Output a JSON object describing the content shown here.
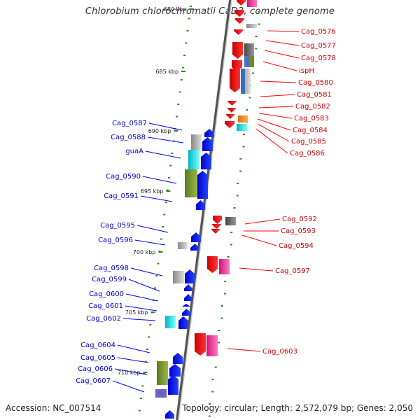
{
  "title": "Chlorobium chlorochromatii CaD3, complete genome",
  "footer": {
    "accession": "Accession: NC_007514",
    "summary": "Topology: circular; Length: 2,572,079 bp; Genes: 2,050"
  },
  "colors": {
    "reverse_strand": "#ff0000",
    "forward_strand": "#0000ff",
    "backbone": "#999999",
    "tick": "#2e8b22"
  },
  "kbp_ticks": [
    {
      "label": "680 kbp",
      "pos": 0
    },
    {
      "label": "685 kbp",
      "pos": 1
    },
    {
      "label": "690 kbp",
      "pos": 2
    },
    {
      "label": "695 kbp",
      "pos": 3
    },
    {
      "label": "700 kbp",
      "pos": 4
    },
    {
      "label": "705 kbp",
      "pos": 5
    },
    {
      "label": "710 kbp",
      "pos": 6
    }
  ],
  "right_labels": [
    "Cag_0576",
    "Cag_0577",
    "Cag_0578",
    "ispH",
    "Cag_0580",
    "Cag_0581",
    "Cag_0582",
    "Cag_0583",
    "Cag_0584",
    "Cag_0585",
    "Cag_0586",
    "Cag_0592",
    "Cag_0593",
    "Cag_0594",
    "Cag_0597",
    "Cag_0603"
  ],
  "left_labels": [
    "Cag_0587",
    "Cag_0588",
    "guaA",
    "Cag_0590",
    "Cag_0591",
    "Cag_0595",
    "Cag_0596",
    "Cag_0598",
    "Cag_0599",
    "Cag_0600",
    "Cag_0601",
    "Cag_0602",
    "Cag_0604",
    "Cag_0605",
    "Cag_0606",
    "Cag_0607"
  ]
}
